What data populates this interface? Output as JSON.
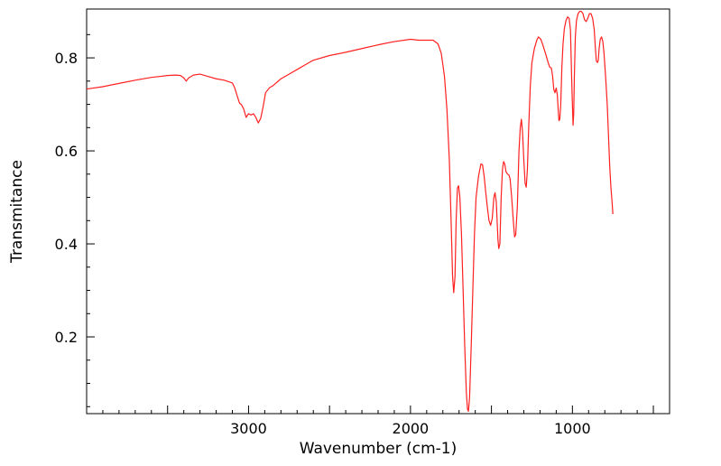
{
  "chart_data": {
    "type": "line",
    "title": "",
    "xlabel": "Wavenumber (cm-1)",
    "ylabel": "Transmitance",
    "xlim": [
      4000,
      400
    ],
    "ylim": [
      0.035,
      0.905
    ],
    "x_reversed": true,
    "grid": false,
    "legend": "none",
    "x_ticks": [
      {
        "value": 3000,
        "label": "3000"
      },
      {
        "value": 2000,
        "label": "2000"
      },
      {
        "value": 1000,
        "label": "1000"
      }
    ],
    "y_ticks": [
      {
        "value": 0.2,
        "label": "0.2"
      },
      {
        "value": 0.4,
        "label": "0.4"
      },
      {
        "value": 0.6,
        "label": "0.6"
      },
      {
        "value": 0.8,
        "label": "0.8"
      }
    ],
    "series": [
      {
        "color": "#ff2020",
        "points": [
          [
            4000,
            0.733
          ],
          [
            3900,
            0.738
          ],
          [
            3800,
            0.745
          ],
          [
            3700,
            0.752
          ],
          [
            3600,
            0.758
          ],
          [
            3550,
            0.76
          ],
          [
            3500,
            0.762
          ],
          [
            3450,
            0.763
          ],
          [
            3420,
            0.762
          ],
          [
            3400,
            0.757
          ],
          [
            3385,
            0.75
          ],
          [
            3370,
            0.757
          ],
          [
            3340,
            0.763
          ],
          [
            3300,
            0.765
          ],
          [
            3250,
            0.76
          ],
          [
            3200,
            0.755
          ],
          [
            3150,
            0.752
          ],
          [
            3100,
            0.746
          ],
          [
            3085,
            0.735
          ],
          [
            3070,
            0.718
          ],
          [
            3055,
            0.702
          ],
          [
            3045,
            0.7
          ],
          [
            3030,
            0.69
          ],
          [
            3015,
            0.672
          ],
          [
            3000,
            0.68
          ],
          [
            2985,
            0.677
          ],
          [
            2970,
            0.68
          ],
          [
            2955,
            0.672
          ],
          [
            2940,
            0.66
          ],
          [
            2925,
            0.67
          ],
          [
            2910,
            0.695
          ],
          [
            2895,
            0.725
          ],
          [
            2870,
            0.736
          ],
          [
            2850,
            0.74
          ],
          [
            2800,
            0.755
          ],
          [
            2750,
            0.765
          ],
          [
            2700,
            0.775
          ],
          [
            2650,
            0.785
          ],
          [
            2600,
            0.795
          ],
          [
            2500,
            0.805
          ],
          [
            2400,
            0.812
          ],
          [
            2300,
            0.82
          ],
          [
            2200,
            0.828
          ],
          [
            2100,
            0.835
          ],
          [
            2000,
            0.84
          ],
          [
            1950,
            0.838
          ],
          [
            1900,
            0.838
          ],
          [
            1860,
            0.838
          ],
          [
            1830,
            0.83
          ],
          [
            1810,
            0.81
          ],
          [
            1790,
            0.76
          ],
          [
            1775,
            0.69
          ],
          [
            1760,
            0.58
          ],
          [
            1750,
            0.46
          ],
          [
            1740,
            0.33
          ],
          [
            1733,
            0.295
          ],
          [
            1725,
            0.33
          ],
          [
            1718,
            0.45
          ],
          [
            1710,
            0.52
          ],
          [
            1703,
            0.525
          ],
          [
            1695,
            0.5
          ],
          [
            1685,
            0.42
          ],
          [
            1675,
            0.3
          ],
          [
            1665,
            0.18
          ],
          [
            1655,
            0.08
          ],
          [
            1648,
            0.045
          ],
          [
            1642,
            0.04
          ],
          [
            1635,
            0.07
          ],
          [
            1625,
            0.18
          ],
          [
            1615,
            0.3
          ],
          [
            1605,
            0.42
          ],
          [
            1595,
            0.5
          ],
          [
            1580,
            0.545
          ],
          [
            1565,
            0.572
          ],
          [
            1555,
            0.57
          ],
          [
            1545,
            0.545
          ],
          [
            1535,
            0.51
          ],
          [
            1525,
            0.478
          ],
          [
            1515,
            0.45
          ],
          [
            1505,
            0.44
          ],
          [
            1495,
            0.455
          ],
          [
            1485,
            0.5
          ],
          [
            1478,
            0.51
          ],
          [
            1470,
            0.49
          ],
          [
            1460,
            0.41
          ],
          [
            1455,
            0.39
          ],
          [
            1448,
            0.4
          ],
          [
            1440,
            0.5
          ],
          [
            1432,
            0.56
          ],
          [
            1425,
            0.577
          ],
          [
            1418,
            0.572
          ],
          [
            1410,
            0.555
          ],
          [
            1400,
            0.55
          ],
          [
            1392,
            0.548
          ],
          [
            1385,
            0.54
          ],
          [
            1375,
            0.5
          ],
          [
            1365,
            0.45
          ],
          [
            1357,
            0.415
          ],
          [
            1350,
            0.42
          ],
          [
            1340,
            0.48
          ],
          [
            1330,
            0.6
          ],
          [
            1322,
            0.65
          ],
          [
            1315,
            0.668
          ],
          [
            1308,
            0.64
          ],
          [
            1300,
            0.58
          ],
          [
            1292,
            0.53
          ],
          [
            1285,
            0.522
          ],
          [
            1278,
            0.56
          ],
          [
            1270,
            0.65
          ],
          [
            1260,
            0.74
          ],
          [
            1250,
            0.79
          ],
          [
            1235,
            0.82
          ],
          [
            1220,
            0.838
          ],
          [
            1210,
            0.845
          ],
          [
            1195,
            0.84
          ],
          [
            1180,
            0.825
          ],
          [
            1165,
            0.808
          ],
          [
            1150,
            0.79
          ],
          [
            1140,
            0.78
          ],
          [
            1130,
            0.778
          ],
          [
            1122,
            0.76
          ],
          [
            1115,
            0.732
          ],
          [
            1108,
            0.725
          ],
          [
            1100,
            0.735
          ],
          [
            1093,
            0.72
          ],
          [
            1088,
            0.69
          ],
          [
            1083,
            0.665
          ],
          [
            1078,
            0.668
          ],
          [
            1072,
            0.7
          ],
          [
            1065,
            0.78
          ],
          [
            1058,
            0.83
          ],
          [
            1050,
            0.862
          ],
          [
            1040,
            0.88
          ],
          [
            1030,
            0.888
          ],
          [
            1020,
            0.885
          ],
          [
            1012,
            0.86
          ],
          [
            1005,
            0.76
          ],
          [
            1000,
            0.7
          ],
          [
            996,
            0.655
          ],
          [
            992,
            0.68
          ],
          [
            988,
            0.76
          ],
          [
            982,
            0.845
          ],
          [
            975,
            0.88
          ],
          [
            965,
            0.895
          ],
          [
            955,
            0.9
          ],
          [
            945,
            0.9
          ],
          [
            935,
            0.895
          ],
          [
            925,
            0.882
          ],
          [
            915,
            0.878
          ],
          [
            905,
            0.885
          ],
          [
            895,
            0.895
          ],
          [
            885,
            0.895
          ],
          [
            875,
            0.885
          ],
          [
            865,
            0.86
          ],
          [
            858,
            0.82
          ],
          [
            852,
            0.793
          ],
          [
            845,
            0.79
          ],
          [
            840,
            0.795
          ],
          [
            835,
            0.82
          ],
          [
            828,
            0.84
          ],
          [
            820,
            0.845
          ],
          [
            812,
            0.835
          ],
          [
            805,
            0.81
          ],
          [
            795,
            0.76
          ],
          [
            785,
            0.7
          ],
          [
            778,
            0.64
          ],
          [
            770,
            0.57
          ],
          [
            762,
            0.52
          ],
          [
            755,
            0.49
          ],
          [
            750,
            0.464
          ]
        ]
      }
    ]
  }
}
